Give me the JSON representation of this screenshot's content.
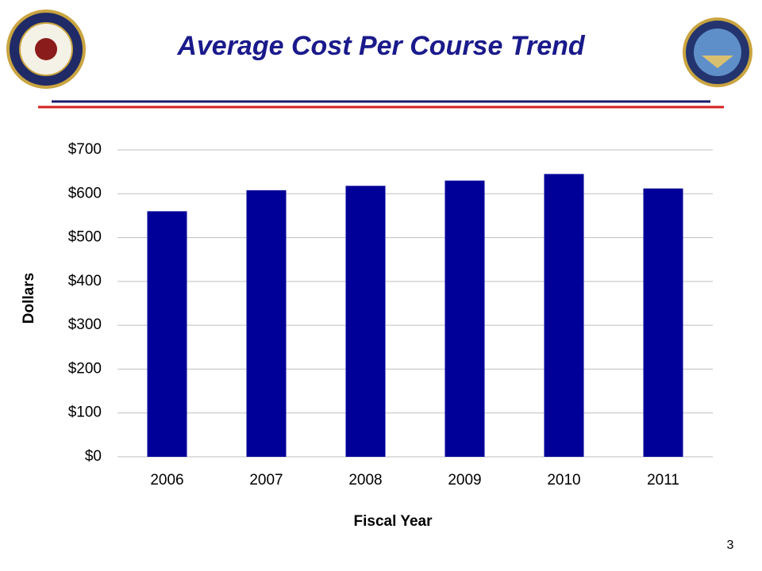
{
  "chart_data": {
    "type": "bar",
    "title": "Average Cost Per Course Trend",
    "x_label": "Fiscal Year",
    "y_label": "Dollars",
    "categories": [
      "2006",
      "2007",
      "2008",
      "2009",
      "2010",
      "2011"
    ],
    "values": [
      560,
      608,
      618,
      630,
      645,
      612
    ],
    "color": "#000099",
    "ylim": [
      0,
      700
    ],
    "yticks": [
      {
        "value": 0,
        "label": "$0"
      },
      {
        "value": 100,
        "label": "$100"
      },
      {
        "value": 200,
        "label": "$200"
      },
      {
        "value": 300,
        "label": "$300"
      },
      {
        "value": 400,
        "label": "$400"
      },
      {
        "value": 500,
        "label": "$500"
      },
      {
        "value": 600,
        "label": "$600"
      },
      {
        "value": 700,
        "label": "$700"
      }
    ],
    "grid": true
  },
  "page_number": "3"
}
